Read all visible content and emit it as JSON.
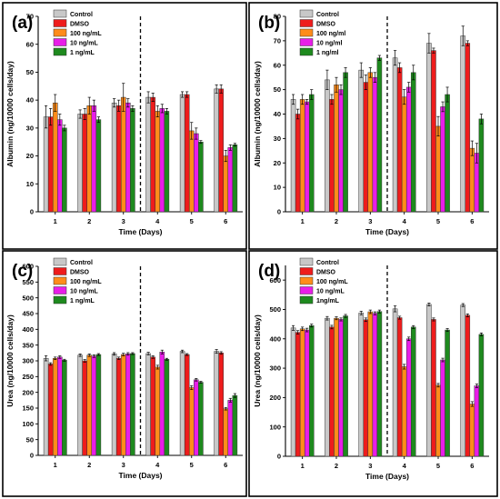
{
  "colors": {
    "Control": "#c8c8c8",
    "DMSO": "#ee1c1c",
    "100": "#ff8c1a",
    "10": "#e81ee8",
    "1": "#1e8a1e"
  },
  "chart_data": [
    {
      "type": "bar",
      "panel_label": "(a)",
      "xlabel": "Time (Days)",
      "ylabel": "Albumin (ng/10000 cells/day)",
      "ylim": [
        0,
        70
      ],
      "yticks": [
        0,
        10,
        20,
        30,
        40,
        50,
        60,
        70
      ],
      "categories": [
        "1",
        "2",
        "3",
        "4",
        "5",
        "6"
      ],
      "divider_after_category": "3",
      "legend_position": "top-left",
      "series": [
        {
          "name": "Control",
          "color_key": "Control",
          "values": [
            34,
            35,
            39,
            41,
            42,
            44
          ],
          "errors": [
            4,
            1.5,
            1.5,
            2,
            1,
            1.5
          ]
        },
        {
          "name": "DMSO",
          "color_key": "DMSO",
          "values": [
            34,
            35,
            38,
            41,
            42,
            44
          ],
          "errors": [
            3,
            2,
            2,
            1.5,
            1,
            1.5
          ]
        },
        {
          "name": "100 ng/mL",
          "color_key": "100",
          "values": [
            39,
            38,
            41,
            36,
            29,
            20
          ],
          "errors": [
            3,
            3,
            5,
            2,
            3,
            2
          ]
        },
        {
          "name": "10 ng/mL",
          "color_key": "10",
          "values": [
            33,
            38,
            39,
            37,
            28,
            23
          ],
          "errors": [
            2,
            2,
            1.5,
            1.5,
            2,
            1
          ]
        },
        {
          "name": "1 ng/mL",
          "color_key": "1",
          "values": [
            30,
            33,
            37,
            36,
            25,
            24
          ],
          "errors": [
            1,
            1,
            1,
            1,
            0.5,
            0.5
          ]
        }
      ]
    },
    {
      "type": "bar",
      "panel_label": "(b)",
      "xlabel": "Time (Days)",
      "ylabel": "Albumin (ng/10000 cells/day)",
      "ylim": [
        0,
        80
      ],
      "yticks": [
        0,
        10,
        20,
        30,
        40,
        50,
        60,
        70,
        80
      ],
      "categories": [
        "1",
        "2",
        "3",
        "4",
        "5",
        "6"
      ],
      "divider_after_category": "3",
      "legend_position": "top-left",
      "series": [
        {
          "name": "Control",
          "color_key": "Control",
          "values": [
            46,
            54,
            58,
            63,
            69,
            72
          ],
          "errors": [
            2,
            4,
            3,
            3,
            4,
            4
          ]
        },
        {
          "name": "DMSO",
          "color_key": "DMSO",
          "values": [
            40,
            46,
            53,
            59,
            66,
            69
          ],
          "errors": [
            2,
            2,
            3,
            2,
            1,
            1
          ]
        },
        {
          "name": "100 ng/ml",
          "color_key": "100",
          "values": [
            46,
            52,
            57,
            47,
            35,
            26
          ],
          "errors": [
            2,
            3,
            2,
            3,
            4,
            3
          ]
        },
        {
          "name": "10 ng/ml",
          "color_key": "10",
          "values": [
            45,
            50,
            55,
            51,
            43,
            24
          ],
          "errors": [
            1,
            2,
            2,
            2,
            2,
            4
          ]
        },
        {
          "name": "1 ng/ml",
          "color_key": "1",
          "values": [
            48,
            57,
            63,
            57,
            48,
            38
          ],
          "errors": [
            2,
            2,
            1,
            3,
            3,
            2
          ]
        }
      ]
    },
    {
      "type": "bar",
      "panel_label": "(c)",
      "xlabel": "Time (Days)",
      "ylabel": "Urea (ng/10000 cells/day)",
      "ylim": [
        0,
        600
      ],
      "yticks": [
        0,
        50,
        100,
        150,
        200,
        250,
        300,
        350,
        400,
        450,
        500,
        550,
        600
      ],
      "categories": [
        "1",
        "2",
        "3",
        "4",
        "5",
        "6"
      ],
      "divider_after_category": "3",
      "legend_position": "top-left",
      "series": [
        {
          "name": "Control",
          "color_key": "Control",
          "values": [
            308,
            318,
            322,
            323,
            330,
            330
          ],
          "errors": [
            8,
            4,
            4,
            4,
            4,
            6
          ]
        },
        {
          "name": "DMSO",
          "color_key": "DMSO",
          "values": [
            290,
            300,
            308,
            312,
            320,
            325
          ],
          "errors": [
            4,
            4,
            4,
            4,
            3,
            4
          ]
        },
        {
          "name": "100 ng/mL",
          "color_key": "100",
          "values": [
            308,
            318,
            320,
            280,
            215,
            148
          ],
          "errors": [
            4,
            4,
            4,
            6,
            6,
            4
          ]
        },
        {
          "name": "10 ng/mL",
          "color_key": "10",
          "values": [
            312,
            315,
            322,
            328,
            240,
            175
          ],
          "errors": [
            4,
            4,
            4,
            6,
            4,
            6
          ]
        },
        {
          "name": "1 ng/mL",
          "color_key": "1",
          "values": [
            302,
            320,
            323,
            305,
            232,
            190
          ],
          "errors": [
            3,
            3,
            3,
            3,
            3,
            6
          ]
        }
      ]
    },
    {
      "type": "bar",
      "panel_label": "(d)",
      "xlabel": "Time (Days)",
      "ylabel": "Urea (ng/10000 cells/day)",
      "ylim": [
        0,
        650
      ],
      "yticks": [
        0,
        100,
        200,
        300,
        400,
        500,
        600
      ],
      "categories": [
        "1",
        "2",
        "3",
        "4",
        "5",
        "6"
      ],
      "divider_after_category": "3",
      "legend_position": "top-left",
      "series": [
        {
          "name": "Control",
          "color_key": "Control",
          "values": [
            437,
            470,
            488,
            502,
            517,
            515
          ],
          "errors": [
            8,
            6,
            6,
            10,
            5,
            5
          ]
        },
        {
          "name": "DMSO",
          "color_key": "DMSO",
          "values": [
            422,
            440,
            465,
            472,
            466,
            480
          ],
          "errors": [
            6,
            6,
            6,
            5,
            5,
            5
          ]
        },
        {
          "name": "100 ng/mL",
          "color_key": "100",
          "values": [
            434,
            470,
            492,
            305,
            242,
            178
          ],
          "errors": [
            6,
            5,
            6,
            8,
            6,
            8
          ]
        },
        {
          "name": "10 ng/mL",
          "color_key": "10",
          "values": [
            430,
            466,
            487,
            400,
            328,
            240
          ],
          "errors": [
            6,
            5,
            5,
            6,
            6,
            6
          ]
        },
        {
          "name": "1ng/mL",
          "color_key": "1",
          "values": [
            445,
            478,
            493,
            440,
            430,
            415
          ],
          "errors": [
            5,
            5,
            5,
            5,
            5,
            5
          ]
        }
      ]
    }
  ]
}
